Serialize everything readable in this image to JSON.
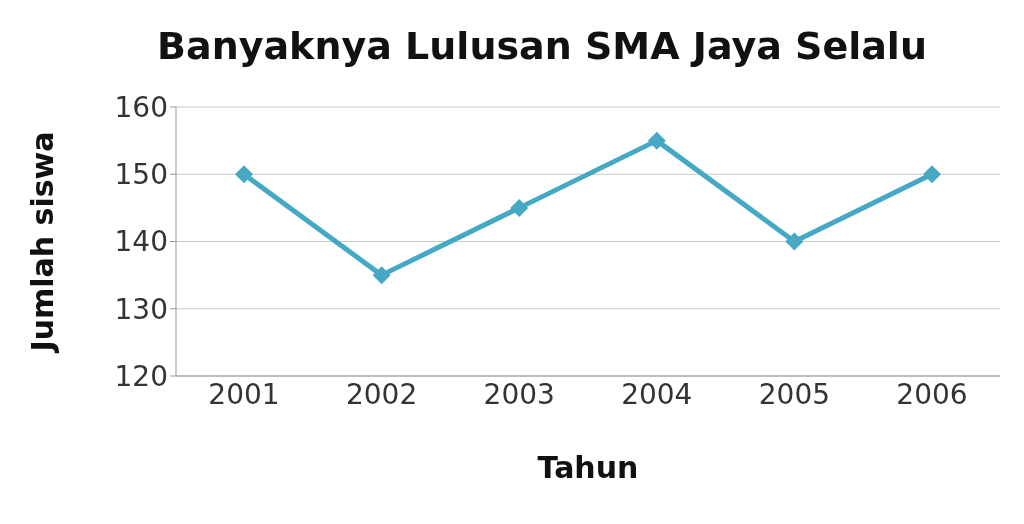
{
  "chart_data": {
    "type": "line",
    "title": "Banyaknya Lulusan SMA Jaya Selalu",
    "xlabel": "Tahun",
    "ylabel": "Jumlah siswa",
    "categories": [
      "2001",
      "2002",
      "2003",
      "2004",
      "2005",
      "2006"
    ],
    "series": [
      {
        "color": "#45a9c6",
        "values": [
          150,
          135,
          145,
          155,
          140,
          150
        ]
      }
    ],
    "ylim": [
      120,
      160
    ],
    "yticks": [
      120,
      130,
      140,
      150,
      160
    ],
    "grid": "y",
    "marker": "diamond",
    "line_style": "solid",
    "legend": false
  }
}
